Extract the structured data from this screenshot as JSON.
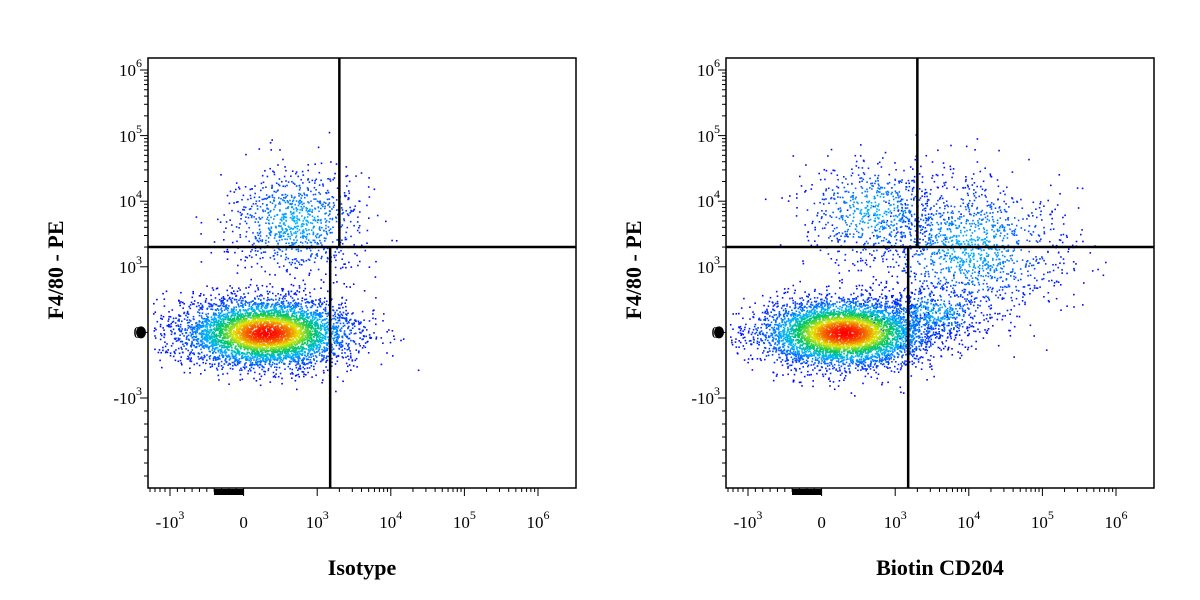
{
  "chart_data": [
    {
      "type": "scatter",
      "panel": "isotype",
      "xlabel": "Isotype",
      "ylabel": "F4/80 - PE",
      "x_scale": "biexponential",
      "y_scale": "biexponential",
      "x_ticks": [
        {
          "base": "-10",
          "exp": "3",
          "value": -1000
        },
        {
          "base": "0",
          "exp": "",
          "value": 0
        },
        {
          "base": "10",
          "exp": "3",
          "value": 1000
        },
        {
          "base": "10",
          "exp": "4",
          "value": 10000
        },
        {
          "base": "10",
          "exp": "5",
          "value": 100000
        },
        {
          "base": "10",
          "exp": "6",
          "value": 1000000
        }
      ],
      "y_ticks": [
        {
          "base": "10",
          "exp": "6",
          "value": 1000000
        },
        {
          "base": "10",
          "exp": "5",
          "value": 100000
        },
        {
          "base": "10",
          "exp": "4",
          "value": 10000
        },
        {
          "base": "10",
          "exp": "3",
          "value": 1000
        },
        {
          "base": "0",
          "exp": "",
          "value": 0
        },
        {
          "base": "-10",
          "exp": "3",
          "value": -1000
        }
      ],
      "quadrant_gates": {
        "y_threshold": 2000,
        "x_threshold_upper": 2000,
        "x_threshold_lower": 1500
      },
      "populations": [
        {
          "x_center": 300,
          "y_center": 0,
          "density": "high"
        },
        {
          "x_center": 700,
          "y_center": 5000,
          "density": "low"
        }
      ]
    },
    {
      "type": "scatter",
      "panel": "biotin-cd204",
      "xlabel": "Biotin CD204",
      "ylabel": "F4/80 - PE",
      "x_scale": "biexponential",
      "y_scale": "biexponential",
      "x_ticks": [
        {
          "base": "-10",
          "exp": "3",
          "value": -1000
        },
        {
          "base": "0",
          "exp": "",
          "value": 0
        },
        {
          "base": "10",
          "exp": "3",
          "value": 1000
        },
        {
          "base": "10",
          "exp": "4",
          "value": 10000
        },
        {
          "base": "10",
          "exp": "5",
          "value": 100000
        },
        {
          "base": "10",
          "exp": "6",
          "value": 1000000
        }
      ],
      "y_ticks": [
        {
          "base": "10",
          "exp": "6",
          "value": 1000000
        },
        {
          "base": "10",
          "exp": "5",
          "value": 100000
        },
        {
          "base": "10",
          "exp": "4",
          "value": 10000
        },
        {
          "base": "10",
          "exp": "3",
          "value": 1000
        },
        {
          "base": "0",
          "exp": "",
          "value": 0
        },
        {
          "base": "-10",
          "exp": "3",
          "value": -1000
        }
      ],
      "quadrant_gates": {
        "y_threshold": 2000,
        "x_threshold_upper": 2000,
        "x_threshold_lower": 1500
      },
      "populations": [
        {
          "x_center": 300,
          "y_center": 0,
          "density": "high"
        },
        {
          "x_center": 700,
          "y_center": 7000,
          "density": "low"
        },
        {
          "x_center": 10000,
          "y_center": 2000,
          "density": "medium"
        }
      ]
    }
  ],
  "colors": {
    "low": "#0000ff",
    "mid": "#00cc66",
    "high": "#ff0000",
    "axis": "#000000"
  }
}
